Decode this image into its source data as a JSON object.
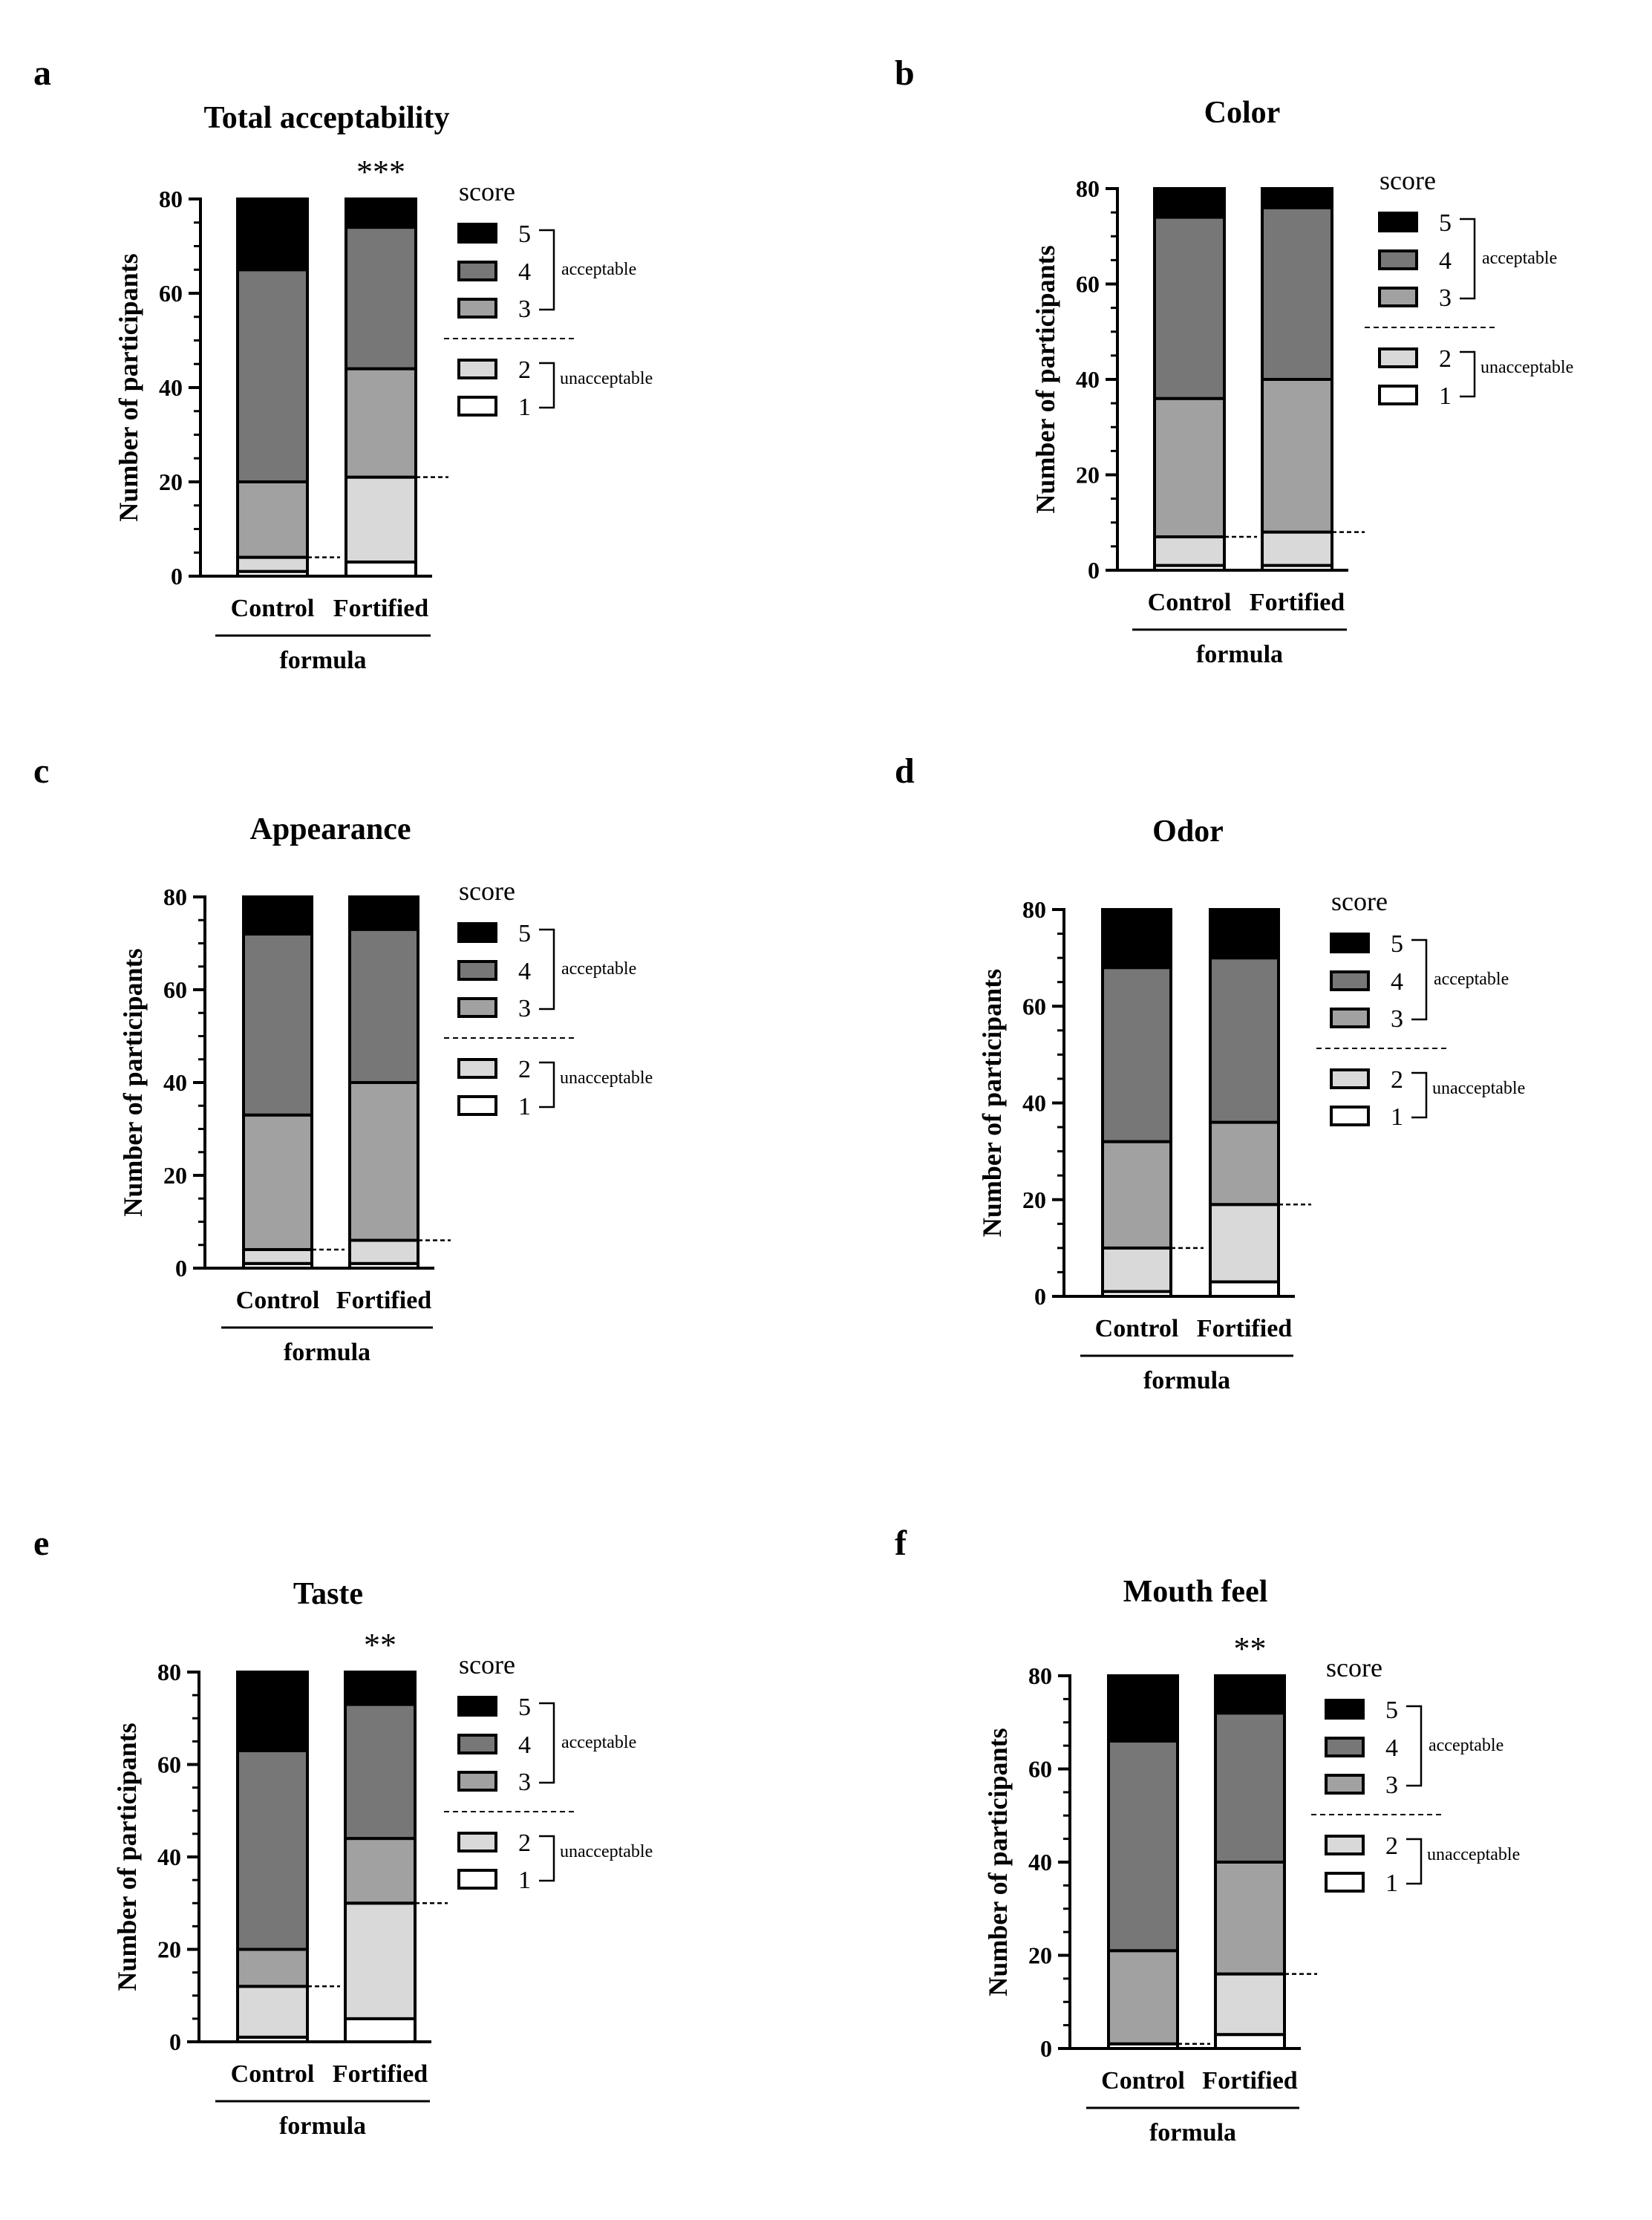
{
  "figure": {
    "score_title": "score",
    "acceptable_label": "acceptable",
    "unacceptable_label": "unacceptable",
    "x_group_label": "formula",
    "y_axis_label": "Number of participants",
    "colors": {
      "score_5": "#000000",
      "score_4": "#777777",
      "score_3": "#a1a1a1",
      "score_2": "#d9d9d9",
      "score_1": "#ffffff",
      "stroke": "#000000"
    }
  },
  "chart_data": [
    {
      "panel": "a",
      "type": "bar",
      "stacked": true,
      "title": "Total acceptability",
      "significance": "***",
      "categories": [
        "Control",
        "Fortified"
      ],
      "xlabel": "formula",
      "ylabel": "Number of participants",
      "ylim": [
        0,
        80
      ],
      "yticks": [
        0,
        20,
        40,
        60,
        80
      ],
      "legend_title": "score",
      "series": [
        {
          "name": "1",
          "values": [
            1,
            3
          ]
        },
        {
          "name": "2",
          "values": [
            3,
            18
          ]
        },
        {
          "name": "3",
          "values": [
            16,
            23
          ]
        },
        {
          "name": "4",
          "values": [
            45,
            30
          ]
        },
        {
          "name": "5",
          "values": [
            15,
            6
          ]
        }
      ]
    },
    {
      "panel": "b",
      "type": "bar",
      "stacked": true,
      "title": "Color",
      "significance": "",
      "categories": [
        "Control",
        "Fortified"
      ],
      "xlabel": "formula",
      "ylabel": "Number of participants",
      "ylim": [
        0,
        80
      ],
      "yticks": [
        0,
        20,
        40,
        60,
        80
      ],
      "legend_title": "score",
      "series": [
        {
          "name": "1",
          "values": [
            1,
            1
          ]
        },
        {
          "name": "2",
          "values": [
            6,
            7
          ]
        },
        {
          "name": "3",
          "values": [
            29,
            32
          ]
        },
        {
          "name": "4",
          "values": [
            38,
            36
          ]
        },
        {
          "name": "5",
          "values": [
            6,
            4
          ]
        }
      ]
    },
    {
      "panel": "c",
      "type": "bar",
      "stacked": true,
      "title": "Appearance",
      "significance": "",
      "categories": [
        "Control",
        "Fortified"
      ],
      "xlabel": "formula",
      "ylabel": "Number of participants",
      "ylim": [
        0,
        80
      ],
      "yticks": [
        0,
        20,
        40,
        60,
        80
      ],
      "legend_title": "score",
      "series": [
        {
          "name": "1",
          "values": [
            1,
            1
          ]
        },
        {
          "name": "2",
          "values": [
            3,
            5
          ]
        },
        {
          "name": "3",
          "values": [
            29,
            34
          ]
        },
        {
          "name": "4",
          "values": [
            39,
            33
          ]
        },
        {
          "name": "5",
          "values": [
            8,
            7
          ]
        }
      ]
    },
    {
      "panel": "d",
      "type": "bar",
      "stacked": true,
      "title": "Odor",
      "significance": "",
      "categories": [
        "Control",
        "Fortified"
      ],
      "xlabel": "formula",
      "ylabel": "Number of participants",
      "ylim": [
        0,
        80
      ],
      "yticks": [
        0,
        20,
        40,
        60,
        80
      ],
      "legend_title": "score",
      "series": [
        {
          "name": "1",
          "values": [
            1,
            3
          ]
        },
        {
          "name": "2",
          "values": [
            9,
            16
          ]
        },
        {
          "name": "3",
          "values": [
            22,
            17
          ]
        },
        {
          "name": "4",
          "values": [
            36,
            34
          ]
        },
        {
          "name": "5",
          "values": [
            12,
            10
          ]
        }
      ]
    },
    {
      "panel": "e",
      "type": "bar",
      "stacked": true,
      "title": "Taste",
      "significance": "**",
      "categories": [
        "Control",
        "Fortified"
      ],
      "xlabel": "formula",
      "ylabel": "Number of participants",
      "ylim": [
        0,
        80
      ],
      "yticks": [
        0,
        20,
        40,
        60,
        80
      ],
      "legend_title": "score",
      "series": [
        {
          "name": "1",
          "values": [
            1,
            5
          ]
        },
        {
          "name": "2",
          "values": [
            11,
            25
          ]
        },
        {
          "name": "3",
          "values": [
            8,
            14
          ]
        },
        {
          "name": "4",
          "values": [
            43,
            29
          ]
        },
        {
          "name": "5",
          "values": [
            17,
            7
          ]
        }
      ]
    },
    {
      "panel": "f",
      "type": "bar",
      "stacked": true,
      "title": "Mouth feel",
      "significance": "**",
      "categories": [
        "Control",
        "Fortified"
      ],
      "xlabel": "formula",
      "ylabel": "Number of participants",
      "ylim": [
        0,
        80
      ],
      "yticks": [
        0,
        20,
        40,
        60,
        80
      ],
      "legend_title": "score",
      "series": [
        {
          "name": "1",
          "values": [
            1,
            3
          ]
        },
        {
          "name": "2",
          "values": [
            0,
            13
          ]
        },
        {
          "name": "3",
          "values": [
            20,
            24
          ]
        },
        {
          "name": "4",
          "values": [
            45,
            32
          ]
        },
        {
          "name": "5",
          "values": [
            14,
            8
          ]
        }
      ]
    }
  ]
}
